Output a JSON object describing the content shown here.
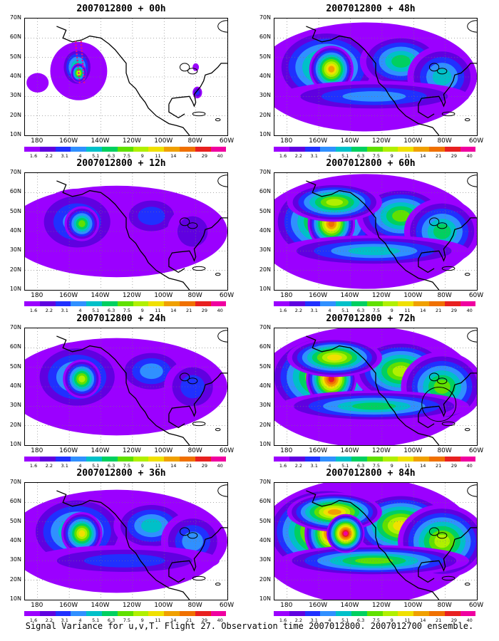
{
  "figure": {
    "caption": "Signal Variance for u,v,T. Flight 27. Observation time 2007012800. 2007012700 ensemble.",
    "lat_labels": [
      "70N",
      "60N",
      "50N",
      "40N",
      "30N",
      "20N",
      "10N"
    ],
    "lon_labels": [
      "180",
      "160W",
      "140W",
      "120W",
      "100W",
      "80W",
      "60W"
    ],
    "colorbar": {
      "labels": [
        "1.6",
        "2.2",
        "3.1",
        "4",
        "5.1",
        "6.3",
        "7.5",
        "9",
        "11",
        "14",
        "21",
        "29",
        "40"
      ],
      "colors": [
        "#9b00ff",
        "#6000e0",
        "#2030ff",
        "#3090ff",
        "#00c0c8",
        "#00d060",
        "#60e000",
        "#b0f000",
        "#f0e000",
        "#f0a000",
        "#f07000",
        "#e82020",
        "#f000a0"
      ]
    },
    "panels": [
      {
        "id": "00h",
        "title": "2007012800 + 00h",
        "intensity": 0
      },
      {
        "id": "48h",
        "title": "2007012800 + 48h",
        "intensity": 4
      },
      {
        "id": "12h",
        "title": "2007012800 + 12h",
        "intensity": 1
      },
      {
        "id": "60h",
        "title": "2007012800 + 60h",
        "intensity": 5
      },
      {
        "id": "24h",
        "title": "2007012800 + 24h",
        "intensity": 2
      },
      {
        "id": "72h",
        "title": "2007012800 + 72h",
        "intensity": 6
      },
      {
        "id": "36h",
        "title": "2007012800 + 36h",
        "intensity": 3
      },
      {
        "id": "84h",
        "title": "2007012800 + 84h",
        "intensity": 7
      }
    ]
  }
}
